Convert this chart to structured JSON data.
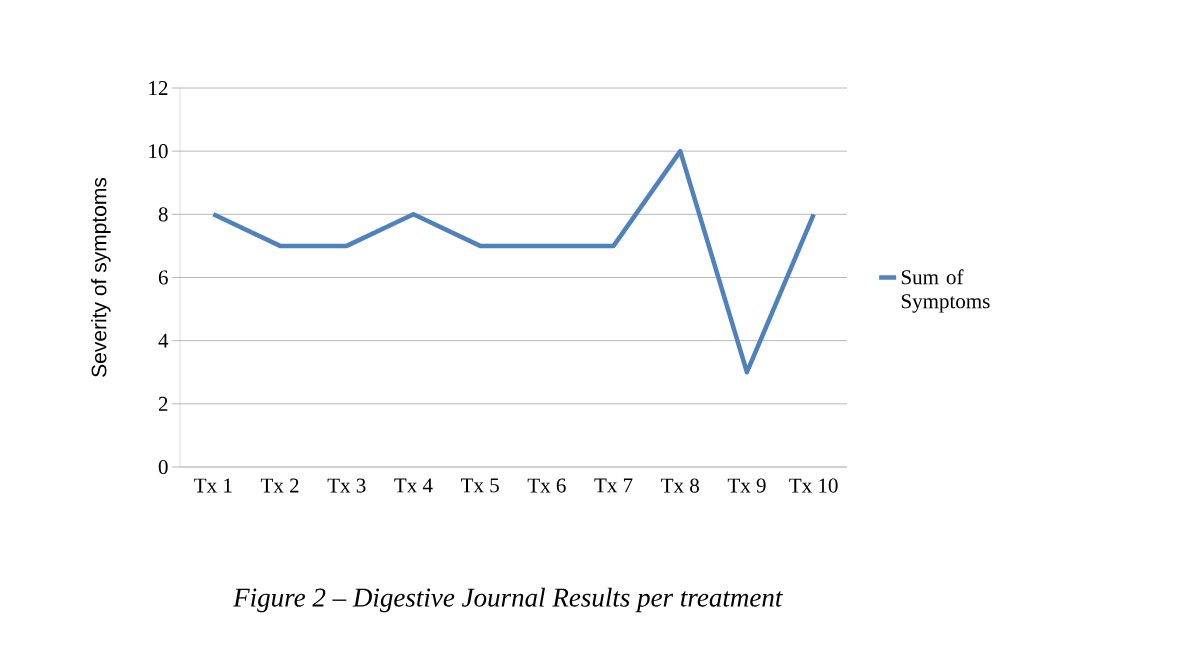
{
  "chart_data": {
    "type": "line",
    "ylabel": "Severity of symptoms",
    "categories": [
      "Tx 1",
      "Tx 2",
      "Tx 3",
      "Tx 4",
      "Tx 5",
      "Tx 6",
      "Tx 7",
      "Tx 8",
      "Tx 9",
      "Tx 10"
    ],
    "series": [
      {
        "name": "Sum of Symptoms",
        "color": "#4f81bd",
        "values": [
          8,
          7,
          7,
          8,
          7,
          7,
          7,
          10,
          3,
          8
        ]
      }
    ],
    "ylim": [
      0,
      12
    ],
    "yticks": [
      0,
      2,
      4,
      6,
      8,
      10,
      12
    ],
    "grid": "y",
    "legend": "right",
    "marker": "none",
    "line_style": "solid",
    "annotations": [
      "*Figure 2 – Digestive Journal Results per treatment*"
    ]
  }
}
